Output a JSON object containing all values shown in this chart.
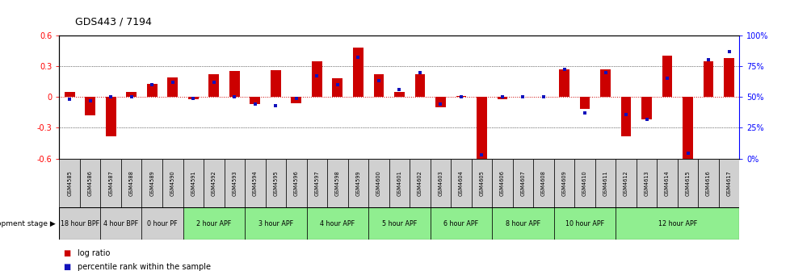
{
  "title": "GDS443 / 7194",
  "samples": [
    "GSM4585",
    "GSM4586",
    "GSM4587",
    "GSM4588",
    "GSM4589",
    "GSM4590",
    "GSM4591",
    "GSM4592",
    "GSM4593",
    "GSM4594",
    "GSM4595",
    "GSM4596",
    "GSM4597",
    "GSM4598",
    "GSM4599",
    "GSM4600",
    "GSM4601",
    "GSM4602",
    "GSM4603",
    "GSM4604",
    "GSM4605",
    "GSM4606",
    "GSM4607",
    "GSM4608",
    "GSM4609",
    "GSM4610",
    "GSM4611",
    "GSM4612",
    "GSM4613",
    "GSM4614",
    "GSM4615",
    "GSM4616",
    "GSM4617"
  ],
  "log_ratio": [
    0.05,
    -0.18,
    -0.38,
    0.05,
    0.13,
    0.19,
    -0.02,
    0.22,
    0.25,
    -0.07,
    0.26,
    -0.06,
    0.35,
    0.18,
    0.48,
    0.22,
    0.05,
    0.22,
    -0.1,
    0.01,
    -0.62,
    -0.02,
    0.0,
    0.0,
    0.27,
    -0.12,
    0.27,
    -0.38,
    -0.22,
    0.4,
    -0.62,
    0.35,
    0.38
  ],
  "percentile": [
    48,
    47,
    50,
    50,
    60,
    62,
    49,
    62,
    50,
    44,
    43,
    49,
    67,
    60,
    82,
    63,
    56,
    70,
    44,
    50,
    3,
    50,
    50,
    50,
    72,
    37,
    70,
    36,
    32,
    65,
    4,
    80,
    87
  ],
  "stages": [
    {
      "label": "18 hour BPF",
      "start": 0,
      "end": 2,
      "color": "#d0d0d0"
    },
    {
      "label": "4 hour BPF",
      "start": 2,
      "end": 4,
      "color": "#d0d0d0"
    },
    {
      "label": "0 hour PF",
      "start": 4,
      "end": 6,
      "color": "#d0d0d0"
    },
    {
      "label": "2 hour APF",
      "start": 6,
      "end": 9,
      "color": "#90ee90"
    },
    {
      "label": "3 hour APF",
      "start": 9,
      "end": 12,
      "color": "#90ee90"
    },
    {
      "label": "4 hour APF",
      "start": 12,
      "end": 15,
      "color": "#90ee90"
    },
    {
      "label": "5 hour APF",
      "start": 15,
      "end": 18,
      "color": "#90ee90"
    },
    {
      "label": "6 hour APF",
      "start": 18,
      "end": 21,
      "color": "#90ee90"
    },
    {
      "label": "8 hour APF",
      "start": 21,
      "end": 24,
      "color": "#90ee90"
    },
    {
      "label": "10 hour APF",
      "start": 24,
      "end": 27,
      "color": "#90ee90"
    },
    {
      "label": "12 hour APF",
      "start": 27,
      "end": 33,
      "color": "#90ee90"
    }
  ],
  "ylim": [
    -0.6,
    0.6
  ],
  "ytick_left_vals": [
    -0.6,
    -0.3,
    0.0,
    0.3,
    0.6
  ],
  "ytick_left_labels": [
    "-0.6",
    "-0.3",
    "0",
    "0.3",
    "0.6"
  ],
  "ytick_right_pcts": [
    0,
    25,
    50,
    75,
    100
  ],
  "bar_color": "#cc0000",
  "dot_color": "#1111bb",
  "zero_line_color": "#cc0000",
  "bg_color": "#ffffff",
  "sample_box_color": "#d0d0d0",
  "dev_stage_label": "development stage",
  "legend_items": [
    {
      "color": "#cc0000",
      "label": "log ratio"
    },
    {
      "color": "#1111bb",
      "label": "percentile rank within the sample"
    }
  ]
}
